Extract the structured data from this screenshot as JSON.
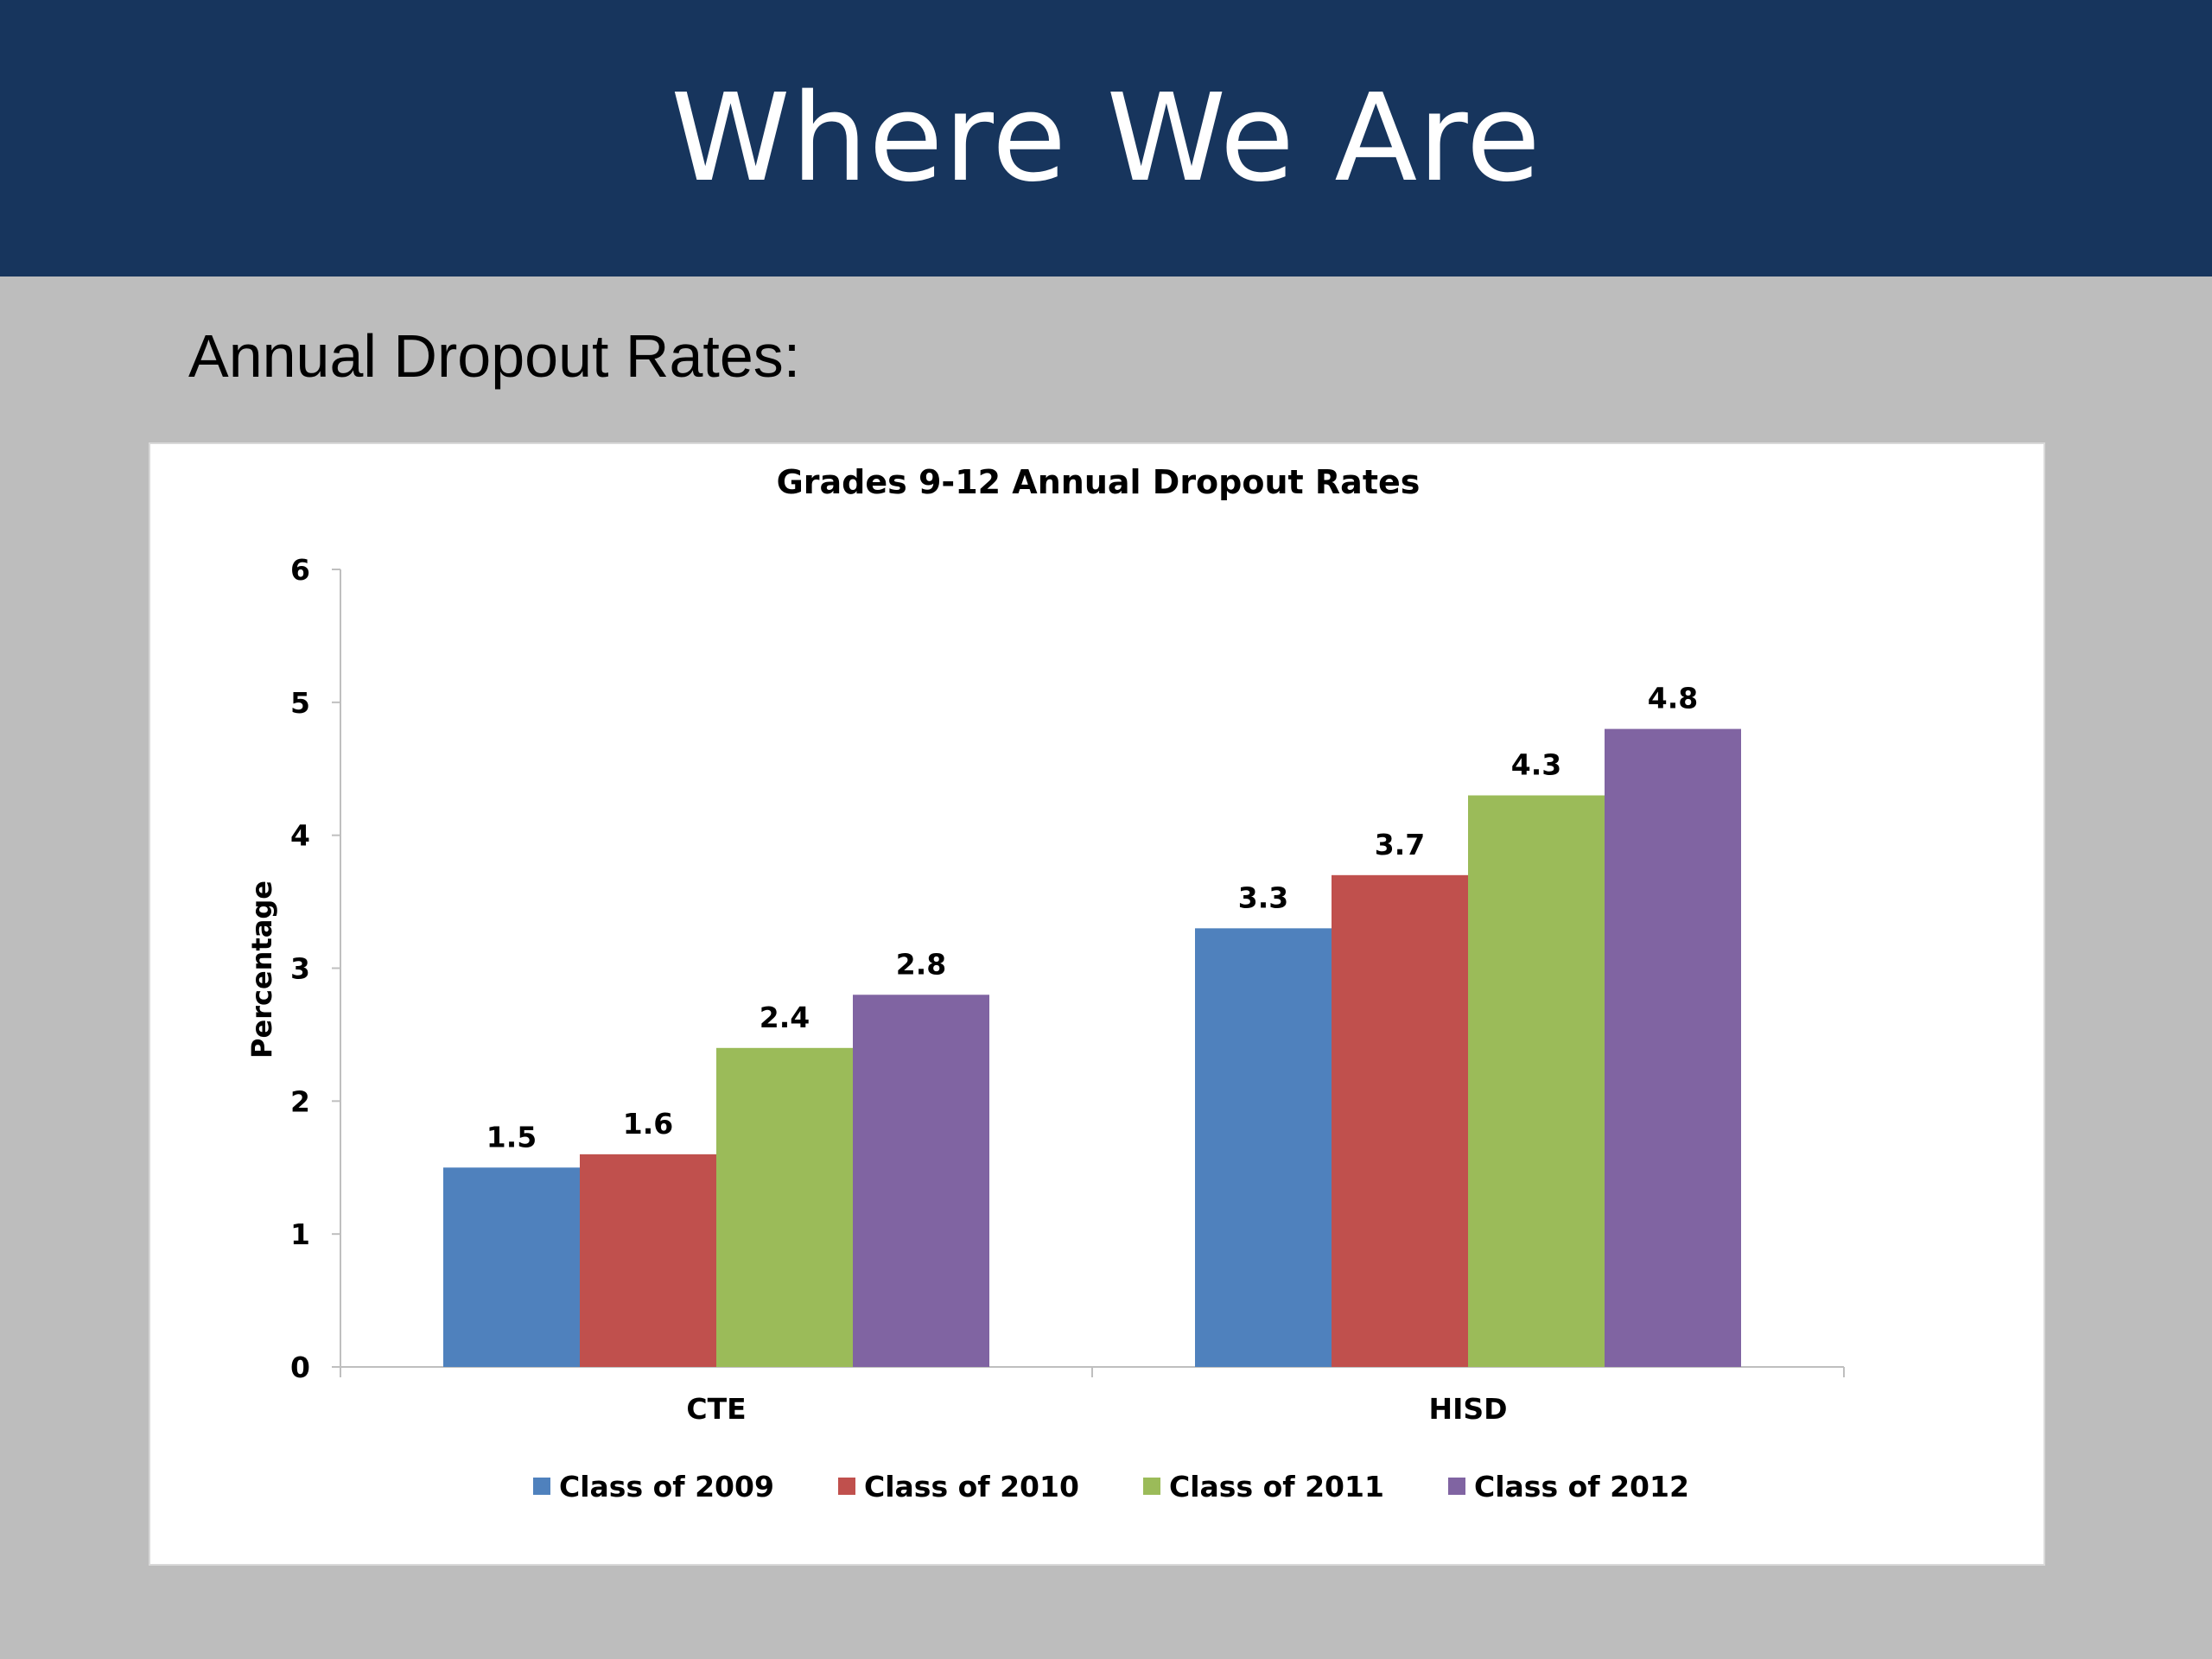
{
  "slide": {
    "title": "Where We Are",
    "subtitle": "Annual Dropout Rates:"
  },
  "colors": {
    "header_bg": "#17355d",
    "slide_bg": "#bdbdbd",
    "series": [
      "#4f81bd",
      "#c0504d",
      "#9bbb59",
      "#8064a2"
    ]
  },
  "chart_data": {
    "type": "bar",
    "title": "Grades 9-12 Annual Dropout Rates",
    "xlabel": "",
    "ylabel": "Percentage",
    "ylim": [
      0,
      6
    ],
    "yticks": [
      0,
      1,
      2,
      3,
      4,
      5,
      6
    ],
    "categories": [
      "CTE",
      "HISD"
    ],
    "series": [
      {
        "name": "Class of 2009",
        "values": [
          1.5,
          3.3
        ]
      },
      {
        "name": "Class of 2010",
        "values": [
          1.6,
          3.7
        ]
      },
      {
        "name": "Class of 2011",
        "values": [
          2.4,
          4.3
        ]
      },
      {
        "name": "Class of 2012",
        "values": [
          2.8,
          4.8
        ]
      }
    ],
    "data_labels": true,
    "grid": false,
    "legend_position": "bottom"
  }
}
